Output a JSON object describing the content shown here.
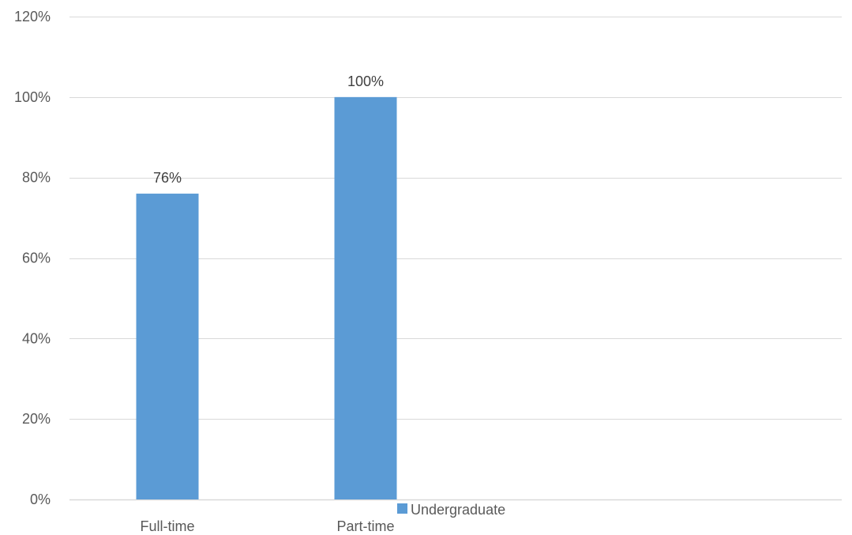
{
  "chart_data": {
    "type": "bar",
    "title": "",
    "xlabel": "",
    "ylabel": "",
    "categories": [
      "Full-time",
      "Part-time"
    ],
    "series": [
      {
        "name": "Undergraduate",
        "values": [
          76,
          100
        ],
        "data_labels": [
          "76%",
          "100%"
        ],
        "color": "#5b9bd5"
      }
    ],
    "ylim": [
      0,
      120
    ],
    "yticks": [
      0,
      20,
      40,
      60,
      80,
      100,
      120
    ],
    "ytick_labels": [
      "0%",
      "20%",
      "40%",
      "60%",
      "80%",
      "100%",
      "120%"
    ],
    "grid": true,
    "legend_position": "bottom",
    "colors": {
      "gridline": "#d9d9d9",
      "tick_text": "#595959",
      "data_label_text": "#404040"
    }
  }
}
